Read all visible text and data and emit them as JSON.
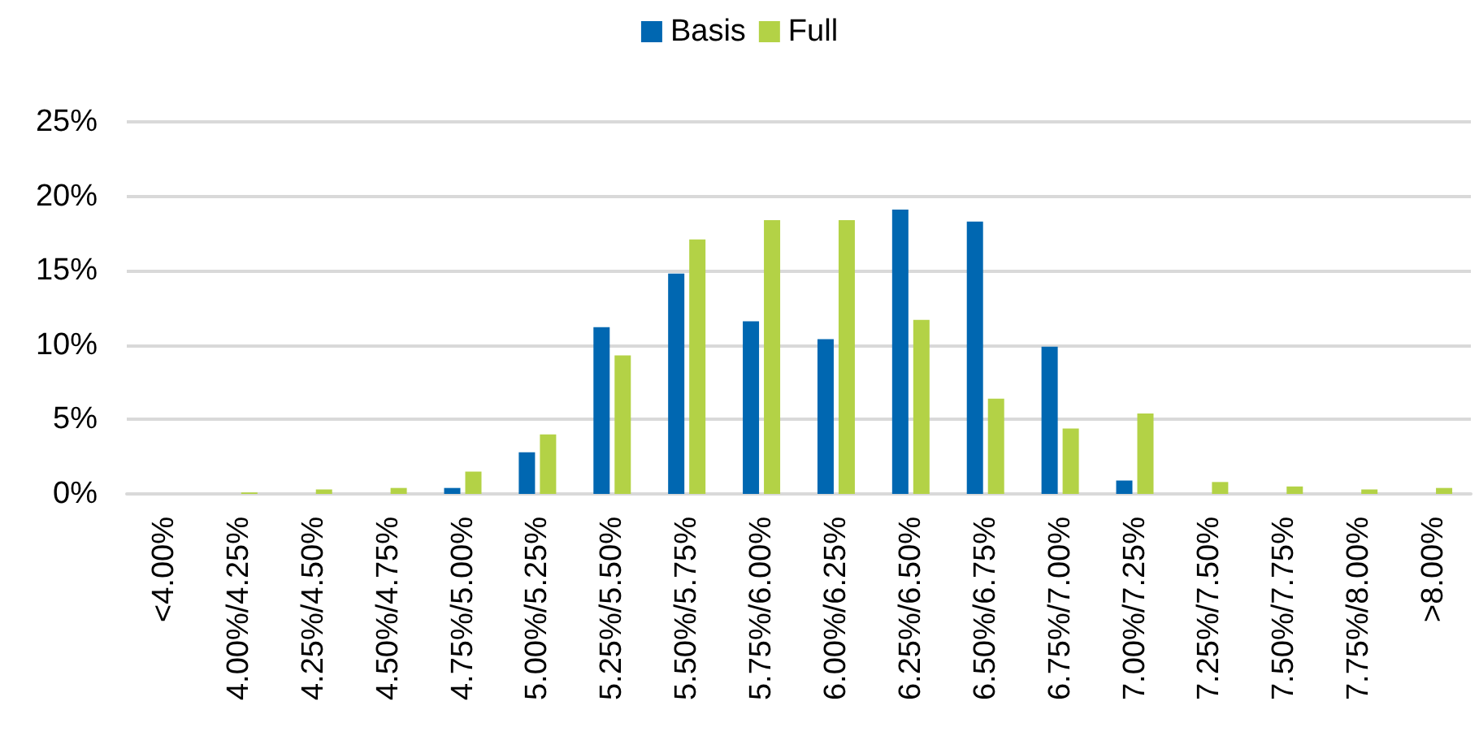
{
  "chart_data": {
    "type": "bar",
    "categories": [
      "<4.00%",
      "4.00%/4.25%",
      "4.25%/4.50%",
      "4.50%/4.75%",
      "4.75%/5.00%",
      "5.00%/5.25%",
      "5.25%/5.50%",
      "5.50%/5.75%",
      "5.75%/6.00%",
      "6.00%/6.25%",
      "6.25%/6.50%",
      "6.50%/6.75%",
      "6.75%/7.00%",
      "7.00%/7.25%",
      "7.25%/7.50%",
      "7.50%/7.75%",
      "7.75%/8.00%",
      ">8.00%"
    ],
    "series": [
      {
        "name": "Basis",
        "color": "#0067b1",
        "values": [
          0,
          0,
          0,
          0,
          0.4,
          2.8,
          11.2,
          14.8,
          11.6,
          10.4,
          19.1,
          18.3,
          9.9,
          0.9,
          0,
          0,
          0,
          0
        ]
      },
      {
        "name": "Full",
        "color": "#b3d246",
        "values": [
          0,
          0.1,
          0.3,
          0.4,
          1.5,
          4.0,
          9.3,
          17.1,
          18.4,
          18.4,
          11.7,
          6.4,
          4.4,
          5.4,
          0.8,
          0.5,
          0.3,
          0.4
        ]
      }
    ],
    "ylim": [
      0,
      25
    ],
    "yticks": [
      {
        "value": 0,
        "label": "0%"
      },
      {
        "value": 5,
        "label": "5%"
      },
      {
        "value": 10,
        "label": "10%"
      },
      {
        "value": 15,
        "label": "15%"
      },
      {
        "value": 20,
        "label": "20%"
      },
      {
        "value": 25,
        "label": "25%"
      }
    ],
    "grid": "y",
    "legend": "top"
  }
}
